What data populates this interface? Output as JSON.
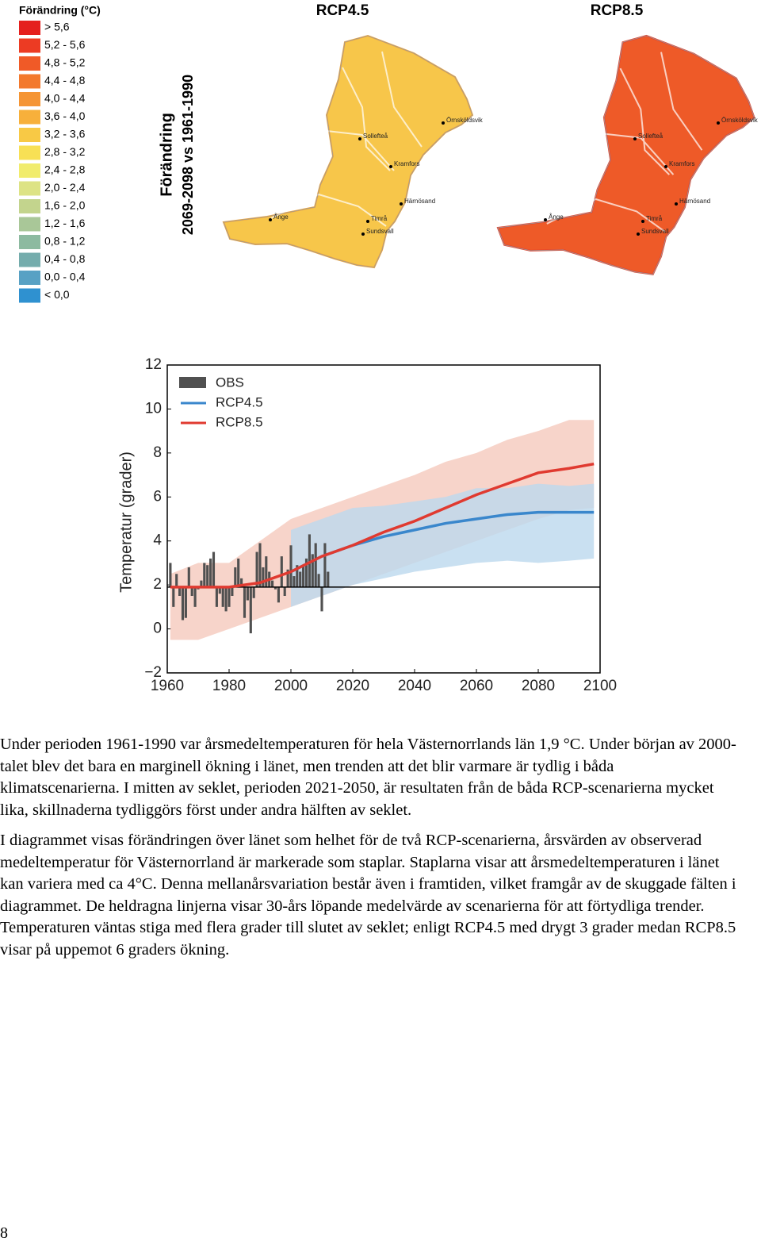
{
  "legend": {
    "title": "Förändring (°C)",
    "entries": [
      {
        "label": "> 5,6",
        "color": "#e51f1d"
      },
      {
        "label": "5,2 - 5,6",
        "color": "#ec3b23"
      },
      {
        "label": "4,8 - 5,2",
        "color": "#f05a27"
      },
      {
        "label": "4,4 - 4,8",
        "color": "#f3792d"
      },
      {
        "label": "4,0 - 4,4",
        "color": "#f59534"
      },
      {
        "label": "3,6 - 4,0",
        "color": "#f7b03b"
      },
      {
        "label": "3,2 - 3,6",
        "color": "#f8c945"
      },
      {
        "label": "2,8 - 3,2",
        "color": "#f8e055"
      },
      {
        "label": "2,4 - 2,8",
        "color": "#f1ec6c"
      },
      {
        "label": "2,0 - 2,4",
        "color": "#dde385"
      },
      {
        "label": "1,6 - 2,0",
        "color": "#c3d48d"
      },
      {
        "label": "1,2 - 1,6",
        "color": "#a9c798"
      },
      {
        "label": "0,8 - 1,2",
        "color": "#8dbaa0"
      },
      {
        "label": "0,4 - 0,8",
        "color": "#74acac"
      },
      {
        "label": "0,0 - 0,4",
        "color": "#58a1c4"
      },
      {
        "label": "< 0,0",
        "color": "#2f91d0"
      }
    ]
  },
  "side_label": {
    "line1": "Förändring",
    "line2": "2069-2098 vs 1961-1990"
  },
  "maps": [
    {
      "title": "RCP4.5",
      "color": "#f7c64a",
      "edge_color": "#f3a83c",
      "places": [
        "Sollefteå",
        "Örnsköldsvik",
        "Kramfors",
        "Härnösand",
        "Ånge",
        "Timrå",
        "Sundsvall"
      ]
    },
    {
      "title": "RCP8.5",
      "color": "#ee5a28",
      "edge_color": "#e8402a",
      "places": [
        "Sollefteå",
        "Örnsköldsvik",
        "Kramfors",
        "Härnösand",
        "Ånge",
        "Timrå",
        "Sundsvall"
      ]
    }
  ],
  "chart_data": {
    "type": "line",
    "ylabel": "Temperatur (grader)",
    "xlim": [
      1960,
      2100
    ],
    "ylim": [
      -2,
      12
    ],
    "xticks": [
      1960,
      1980,
      2000,
      2020,
      2040,
      2060,
      2080,
      2100
    ],
    "yticks": [
      {
        "value": -2,
        "label": "−2"
      },
      0,
      2,
      4,
      6,
      8,
      10,
      12
    ],
    "reference_line": 1.9,
    "obs": {
      "name": "OBS",
      "color": "#505050",
      "x": [
        1961,
        1962,
        1963,
        1964,
        1965,
        1966,
        1967,
        1968,
        1969,
        1970,
        1971,
        1972,
        1973,
        1974,
        1975,
        1976,
        1977,
        1978,
        1979,
        1980,
        1981,
        1982,
        1983,
        1984,
        1985,
        1986,
        1987,
        1988,
        1989,
        1990,
        1991,
        1992,
        1993,
        1994,
        1995,
        1996,
        1997,
        1998,
        1999,
        2000,
        2001,
        2002,
        2003,
        2004,
        2005,
        2006,
        2007,
        2008,
        2009,
        2010,
        2011,
        2012
      ],
      "values": [
        3.0,
        1.0,
        2.5,
        1.5,
        0.4,
        0.5,
        2.8,
        1.5,
        1.0,
        1.8,
        2.2,
        3.0,
        2.9,
        3.2,
        3.5,
        1.0,
        1.6,
        1.0,
        0.8,
        1.0,
        1.5,
        2.8,
        3.2,
        2.3,
        0.5,
        1.3,
        -0.2,
        1.4,
        3.5,
        3.9,
        2.8,
        3.3,
        2.6,
        2.2,
        1.8,
        1.2,
        3.3,
        1.5,
        2.7,
        3.8,
        2.4,
        2.9,
        2.6,
        2.9,
        3.2,
        4.3,
        3.4,
        3.9,
        2.5,
        0.8,
        3.9,
        2.6
      ]
    },
    "x": [
      1961,
      1970,
      1980,
      1990,
      2000,
      2010,
      2020,
      2030,
      2040,
      2050,
      2060,
      2070,
      2080,
      2090,
      2098
    ],
    "series": [
      {
        "name": "RCP4.5",
        "color": "#3a87cc",
        "band_color": "#bcd8ee",
        "values": [
          null,
          null,
          null,
          null,
          2.6,
          3.3,
          3.8,
          4.2,
          4.5,
          4.8,
          5.0,
          5.2,
          5.3,
          5.3,
          5.3
        ],
        "lower": [
          null,
          null,
          null,
          null,
          1.0,
          1.5,
          2.0,
          2.3,
          2.6,
          2.8,
          3.0,
          3.1,
          3.0,
          3.1,
          3.2
        ],
        "upper": [
          null,
          null,
          null,
          null,
          4.5,
          5.0,
          5.5,
          5.6,
          5.8,
          6.0,
          6.4,
          6.4,
          6.6,
          6.5,
          6.6
        ]
      },
      {
        "name": "RCP8.5",
        "color": "#e03a30",
        "band_color": "#f5c9bd",
        "values": [
          1.9,
          1.9,
          1.9,
          2.1,
          2.6,
          3.3,
          3.8,
          4.4,
          4.9,
          5.5,
          6.1,
          6.6,
          7.1,
          7.3,
          7.5
        ],
        "lower": [
          -0.5,
          -0.5,
          0.0,
          0.5,
          1.0,
          1.5,
          2.0,
          2.5,
          3.0,
          3.5,
          4.0,
          4.5,
          5.0,
          5.4,
          5.5
        ],
        "upper": [
          2.5,
          3.0,
          3.0,
          4.0,
          5.0,
          5.5,
          6.0,
          6.5,
          7.0,
          7.6,
          8.0,
          8.6,
          9.0,
          9.5,
          9.5
        ]
      }
    ]
  },
  "paragraphs": [
    "Under perioden 1961-1990 var årsmedeltemperaturen för hela Västernorrlands län 1,9 °C. Under början av 2000-talet blev det bara en marginell ökning i länet, men trenden att det blir varmare är tydlig i båda klimatscenarierna. I mitten av seklet, perioden 2021-2050, är resultaten från de båda RCP-scenarierna mycket lika, skillnaderna tydliggörs först under andra hälften av seklet.",
    "I diagrammet visas förändringen över länet som helhet för de två RCP-scenarierna, årsvärden av observerad medeltemperatur för Västernorrland är markerade som staplar. Staplarna visar att årsmedeltemperaturen i länet kan variera med ca 4°C. Denna mellanårsvariation består även i framtiden, vilket framgår av de skuggade fälten i diagrammet. De heldragna linjerna visar 30-års löpande medelvärde av scenarierna för att förtydliga trender. Temperaturen väntas stiga med flera grader till slutet av seklet; enligt RCP4.5 med drygt 3 grader medan RCP8.5 visar på uppemot 6 graders ökning."
  ],
  "page_number": "8"
}
